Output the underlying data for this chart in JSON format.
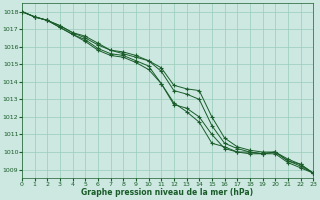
{
  "title": "Graphe pression niveau de la mer (hPa)",
  "xlim": [
    0,
    23
  ],
  "ylim": [
    1008.5,
    1018.5
  ],
  "yticks": [
    1009,
    1010,
    1011,
    1012,
    1013,
    1014,
    1015,
    1016,
    1017,
    1018
  ],
  "xticks": [
    0,
    1,
    2,
    3,
    4,
    5,
    6,
    7,
    8,
    9,
    10,
    11,
    12,
    13,
    14,
    15,
    16,
    17,
    18,
    19,
    20,
    21,
    22,
    23
  ],
  "background_color": "#cce8e0",
  "grid_color": "#99ccbb",
  "line_color": "#1a5c2a",
  "line1": [
    1018.0,
    1017.7,
    1017.5,
    1017.1,
    1016.7,
    1016.3,
    1015.8,
    1015.5,
    1015.4,
    1015.1,
    1014.7,
    1013.9,
    1012.8,
    1012.3,
    1011.7,
    1010.5,
    1010.3,
    1010.0,
    1009.9,
    1009.9,
    1010.0,
    1009.5,
    1009.3,
    1008.8
  ],
  "line2": [
    1018.0,
    1017.7,
    1017.5,
    1017.1,
    1016.7,
    1016.4,
    1015.9,
    1015.6,
    1015.5,
    1015.2,
    1014.9,
    1013.9,
    1012.7,
    1012.5,
    1012.0,
    1011.0,
    1010.2,
    1010.0,
    1010.0,
    1009.9,
    1009.9,
    1009.4,
    1009.1,
    1008.8
  ],
  "line3": [
    1018.0,
    1017.7,
    1017.5,
    1017.2,
    1016.8,
    1016.5,
    1016.1,
    1015.8,
    1015.6,
    1015.4,
    1015.2,
    1014.6,
    1013.5,
    1013.3,
    1013.0,
    1011.5,
    1010.5,
    1010.2,
    1010.0,
    1009.9,
    1010.0,
    1009.5,
    1009.2,
    1008.8
  ],
  "line4": [
    1018.0,
    1017.7,
    1017.5,
    1017.2,
    1016.8,
    1016.6,
    1016.2,
    1015.8,
    1015.7,
    1015.5,
    1015.2,
    1014.8,
    1013.8,
    1013.6,
    1013.5,
    1012.0,
    1010.8,
    1010.3,
    1010.1,
    1010.0,
    1010.0,
    1009.6,
    1009.3,
    1008.8
  ]
}
